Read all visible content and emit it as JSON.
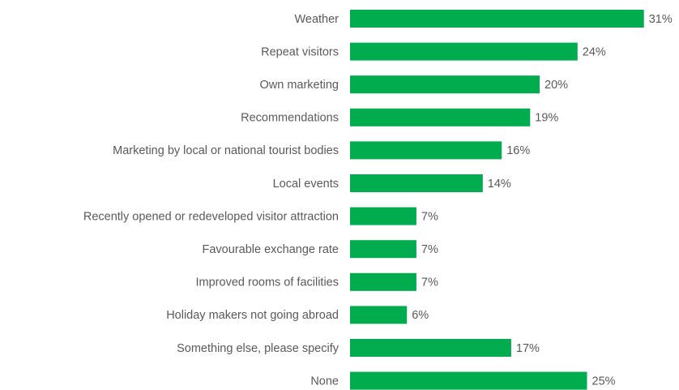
{
  "chart_data": {
    "type": "barh",
    "color": "#00ac4e",
    "categories": [
      "Weather",
      "Repeat visitors",
      "Own marketing",
      "Recommendations",
      "Marketing by local or national tourist bodies",
      "Local events",
      "Recently opened or redeveloped visitor attraction",
      "Favourable exchange rate",
      "Improved rooms of facilities",
      "Holiday makers not going abroad",
      "Something else, please specify",
      "None"
    ],
    "values": [
      31,
      24,
      20,
      19,
      16,
      14,
      7,
      7,
      7,
      6,
      17,
      25
    ],
    "value_labels": [
      "31%",
      "24%",
      "20%",
      "19%",
      "16%",
      "14%",
      "7%",
      "7%",
      "7%",
      "6%",
      "17%",
      "25%"
    ]
  }
}
